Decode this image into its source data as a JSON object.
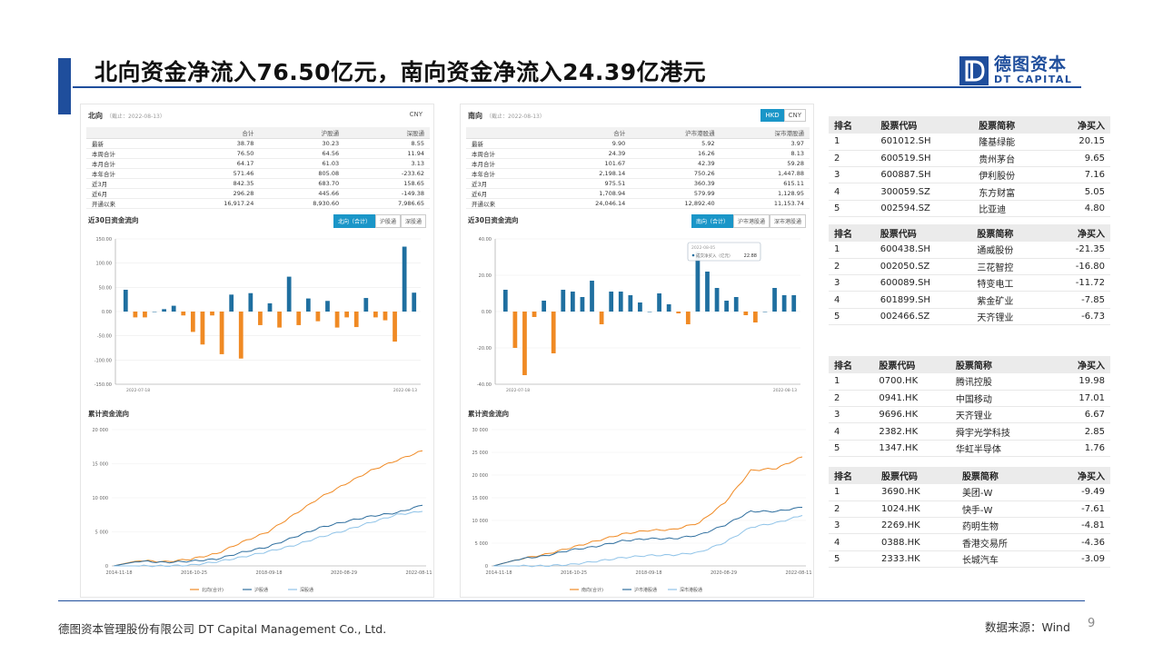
{
  "title": "北向资金净流入76.50亿元，南向资金净流入24.39亿港元",
  "logo": {
    "cn": "德图资本",
    "en": "DT CAPITAL"
  },
  "north": {
    "title": "北向",
    "date_note": "（截止：2022-08-13）",
    "currency": "CNY",
    "table": {
      "headers": [
        "",
        "合计",
        "沪股通",
        "深股通"
      ],
      "rows": [
        [
          "最新",
          "38.78",
          "30.23",
          "8.55"
        ],
        [
          "本周合计",
          "76.50",
          "64.56",
          "11.94"
        ],
        [
          "本月合计",
          "64.17",
          "61.03",
          "3.13"
        ],
        [
          "本年合计",
          "571.46",
          "805.08",
          "-233.62"
        ],
        [
          "近3月",
          "842.35",
          "683.70",
          "158.65"
        ],
        [
          "近6月",
          "296.28",
          "445.66",
          "-149.38"
        ],
        [
          "开通以来",
          "16,917.24",
          "8,930.60",
          "7,986.65"
        ]
      ]
    },
    "flow30": {
      "title": "近30日资金流向",
      "tabs": [
        "北向（合计）",
        "沪股通",
        "深股通"
      ],
      "yticks": [
        "150.00",
        "100.00",
        "50.00",
        "0.00",
        "-50.00",
        "-100.00",
        "-150.00"
      ],
      "xstart": "2022-07-18",
      "xend": "2022-08-13"
    },
    "cum": {
      "title": "累计资金流向",
      "yticks": [
        "20 000",
        "15 000",
        "10 000",
        "5 000",
        "0"
      ],
      "xticks": [
        "2014-11-18",
        "2016-10-25",
        "2018-09-18",
        "2020-08-29",
        "2022-08-11"
      ],
      "legend": [
        "北向(合计)",
        "沪股通",
        "深股通"
      ]
    }
  },
  "south": {
    "title": "南向",
    "date_note": "（截止：2022-08-13）",
    "currencies": [
      "HKD",
      "CNY"
    ],
    "table": {
      "headers": [
        "",
        "合计",
        "沪市港股通",
        "深市港股通"
      ],
      "rows": [
        [
          "最新",
          "9.90",
          "5.92",
          "3.97"
        ],
        [
          "本周合计",
          "24.39",
          "16.26",
          "8.13"
        ],
        [
          "本月合计",
          "101.67",
          "42.39",
          "59.28"
        ],
        [
          "本年合计",
          "2,198.14",
          "750.26",
          "1,447.88"
        ],
        [
          "近3月",
          "975.51",
          "360.39",
          "615.11"
        ],
        [
          "近6月",
          "1,708.94",
          "579.99",
          "1,128.95"
        ],
        [
          "开通以来",
          "24,046.14",
          "12,892.40",
          "11,153.74"
        ]
      ]
    },
    "flow30": {
      "title": "近30日资金流向",
      "tabs": [
        "南向（合计）",
        "沪市港股通",
        "深市港股通"
      ],
      "yticks": [
        "40.00",
        "20.00",
        "0.00",
        "-20.00",
        "-40.00"
      ],
      "xstart": "2022-07-18",
      "xend": "2022-08-13",
      "tooltip": {
        "date": "2022-08-05",
        "label": "成交净买入（亿元）",
        "value": "22.88"
      }
    },
    "cum": {
      "title": "累计资金流向",
      "yticks": [
        "30 000",
        "25 000",
        "20 000",
        "15 000",
        "10 000",
        "5 000",
        "0"
      ],
      "xticks": [
        "2014-11-18",
        "2016-10-25",
        "2018-09-18",
        "2020-08-29",
        "2022-08-11"
      ],
      "legend": [
        "南向(合计)",
        "沪市港股通",
        "深市港股通"
      ]
    }
  },
  "rank_headers": [
    "排名",
    "股票代码",
    "股票简称",
    "净买入"
  ],
  "rank_tables": [
    {
      "rows": [
        [
          "1",
          "601012.SH",
          "隆基绿能",
          "20.15"
        ],
        [
          "2",
          "600519.SH",
          "贵州茅台",
          "9.65"
        ],
        [
          "3",
          "600887.SH",
          "伊利股份",
          "7.16"
        ],
        [
          "4",
          "300059.SZ",
          "东方财富",
          "5.05"
        ],
        [
          "5",
          "002594.SZ",
          "比亚迪",
          "4.80"
        ]
      ]
    },
    {
      "rows": [
        [
          "1",
          "600438.SH",
          "通威股份",
          "-21.35"
        ],
        [
          "2",
          "002050.SZ",
          "三花智控",
          "-16.80"
        ],
        [
          "3",
          "600089.SH",
          "特变电工",
          "-11.72"
        ],
        [
          "4",
          "601899.SH",
          "紫金矿业",
          "-7.85"
        ],
        [
          "5",
          "002466.SZ",
          "天齐锂业",
          "-6.73"
        ]
      ]
    },
    {
      "rows": [
        [
          "1",
          "0700.HK",
          "腾讯控股",
          "19.98"
        ],
        [
          "2",
          "0941.HK",
          "中国移动",
          "17.01"
        ],
        [
          "3",
          "9696.HK",
          "天齐锂业",
          "6.67"
        ],
        [
          "4",
          "2382.HK",
          "舜宇光学科技",
          "2.85"
        ],
        [
          "5",
          "1347.HK",
          "华虹半导体",
          "1.76"
        ]
      ]
    },
    {
      "rows": [
        [
          "1",
          "3690.HK",
          "美团-W",
          "-9.49"
        ],
        [
          "2",
          "1024.HK",
          "快手-W",
          "-7.61"
        ],
        [
          "3",
          "2269.HK",
          "药明生物",
          "-4.81"
        ],
        [
          "4",
          "0388.HK",
          "香港交易所",
          "-4.36"
        ],
        [
          "5",
          "2333.HK",
          "长城汽车",
          "-3.09"
        ]
      ]
    }
  ],
  "footer": {
    "company": "德图资本管理股份有限公司  DT Capital Management  Co., Ltd.",
    "source": "数据来源：Wind",
    "page": "9"
  },
  "colors": {
    "brand": "#1f4e9c",
    "bar_pos": "#1f6fa0",
    "bar_neg": "#f08a24",
    "line_total": "#f08a24",
    "line_a": "#2e6e9e",
    "line_b": "#8fc3e8",
    "positive": "#e02020",
    "negative": "#1a9a2a"
  },
  "chart_data": [
    {
      "type": "bar",
      "title": "近30日资金流向",
      "ylim": [
        -150,
        150
      ],
      "values": [
        45,
        -12,
        -12,
        0,
        5,
        12,
        -8,
        -42,
        -68,
        -8,
        -88,
        35,
        -97,
        38,
        -28,
        17,
        -33,
        72,
        -28,
        27,
        -20,
        22,
        -33,
        -12,
        -32,
        28,
        -12,
        -18,
        -62,
        134,
        39
      ]
    },
    {
      "type": "bar",
      "title": "近30日资金流向",
      "ylim": [
        -40,
        40
      ],
      "values": [
        12,
        -20,
        -35,
        -3,
        6,
        -23,
        12,
        11,
        8,
        17,
        -7,
        11,
        11,
        9,
        5,
        0,
        10,
        4,
        -1,
        -7,
        33,
        22,
        13,
        6,
        8,
        -2,
        -6,
        0,
        13,
        9,
        9
      ]
    },
    {
      "type": "line",
      "title": "累计资金流向",
      "ylim": [
        0,
        20000
      ],
      "x": [
        "2014-11",
        "2015-06",
        "2016-01",
        "2016-10",
        "2017-06",
        "2018-01",
        "2018-09",
        "2019-05",
        "2020-01",
        "2020-08",
        "2021-04",
        "2021-11",
        "2022-08"
      ],
      "series": [
        {
          "name": "北向(合计)",
          "values": [
            0,
            800,
            600,
            1000,
            1800,
            3500,
            5000,
            7500,
            10000,
            12000,
            14000,
            15500,
            16900
          ]
        },
        {
          "name": "沪股通",
          "values": [
            0,
            700,
            500,
            700,
            1000,
            2000,
            2800,
            4200,
            5600,
            6500,
            7300,
            7800,
            8900
          ]
        },
        {
          "name": "深股通",
          "values": [
            0,
            0,
            0,
            100,
            600,
            1300,
            2100,
            3000,
            4200,
            5200,
            6400,
            7500,
            8000
          ]
        }
      ]
    },
    {
      "type": "line",
      "title": "累计资金流向",
      "ylim": [
        0,
        30000
      ],
      "x": [
        "2014-11",
        "2015-06",
        "2016-01",
        "2016-10",
        "2017-06",
        "2018-01",
        "2018-09",
        "2019-05",
        "2020-01",
        "2020-08",
        "2021-04",
        "2021-11",
        "2022-08"
      ],
      "series": [
        {
          "name": "南向(合计)",
          "values": [
            0,
            1500,
            2500,
            4000,
            5500,
            7000,
            7800,
            8000,
            9500,
            14000,
            21000,
            21500,
            24000
          ]
        },
        {
          "name": "沪市港股通",
          "values": [
            0,
            1500,
            2200,
            3500,
            4300,
            5500,
            6000,
            6000,
            6800,
            9000,
            12000,
            12000,
            12900
          ]
        },
        {
          "name": "深市港股通",
          "values": [
            0,
            0,
            0,
            300,
            1000,
            1800,
            2300,
            2400,
            3000,
            5200,
            8500,
            9500,
            11100
          ]
        }
      ]
    }
  ]
}
